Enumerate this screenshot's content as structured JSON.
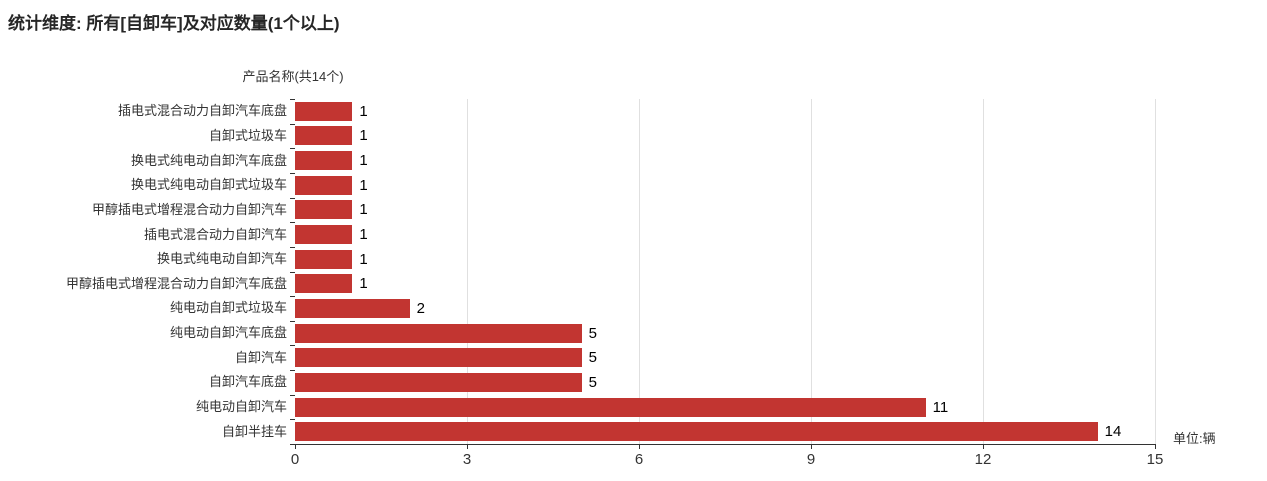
{
  "title": "统计维度: 所有[自卸车]及对应数量(1个以上)",
  "chart_data": {
    "type": "bar",
    "orientation": "horizontal",
    "title": "统计维度: 所有[自卸车]及对应数量(1个以上)",
    "y_axis_name": "产品名称(共14个)",
    "unit_label": "单位:辆",
    "categories": [
      "插电式混合动力自卸汽车底盘",
      "自卸式垃圾车",
      "换电式纯电动自卸汽车底盘",
      "换电式纯电动自卸式垃圾车",
      "甲醇插电式增程混合动力自卸汽车",
      "插电式混合动力自卸汽车",
      "换电式纯电动自卸汽车",
      "甲醇插电式增程混合动力自卸汽车底盘",
      "纯电动自卸式垃圾车",
      "纯电动自卸汽车底盘",
      "自卸汽车",
      "自卸汽车底盘",
      "纯电动自卸汽车",
      "自卸半挂车"
    ],
    "values": [
      1,
      1,
      1,
      1,
      1,
      1,
      1,
      1,
      2,
      5,
      5,
      5,
      11,
      14
    ],
    "xlim": [
      0,
      15
    ],
    "x_ticks": [
      0,
      3,
      6,
      9,
      12,
      15
    ],
    "grid": true,
    "legend": false,
    "colors": {
      "bar": "#c23531",
      "axis": "#333333",
      "grid_line": "#e0e0e0",
      "text": "#333333",
      "value_label": "#000000"
    }
  }
}
